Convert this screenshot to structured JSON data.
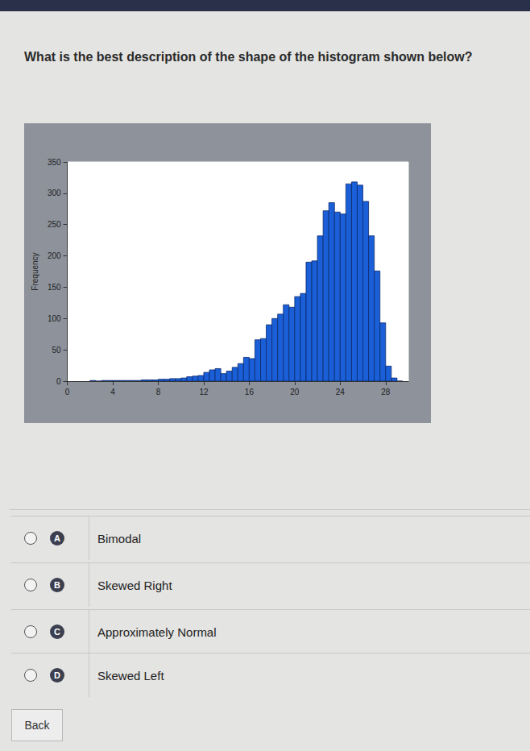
{
  "question": "What is the best description of the shape of the histogram shown below?",
  "chart_data": {
    "type": "histogram",
    "y_label": "Frequency",
    "bins": [
      2.0,
      2.5,
      3.0,
      3.5,
      4.0,
      4.5,
      5.0,
      5.5,
      6.0,
      6.5,
      7.0,
      7.5,
      8.0,
      8.5,
      9.0,
      9.5,
      10.0,
      10.5,
      11.0,
      11.5,
      12.0,
      12.5,
      13.0,
      13.5,
      14.0,
      14.5,
      15.0,
      15.5,
      16.0,
      16.5,
      17.0,
      17.5,
      18.0,
      18.5,
      19.0,
      19.5,
      20.0,
      20.5,
      21.0,
      21.5,
      22.0,
      22.5,
      23.0,
      23.5,
      24.0,
      24.5,
      25.0,
      25.5,
      26.0,
      26.5,
      27.0,
      27.5,
      28.0,
      28.5,
      29.0,
      29.5
    ],
    "values": [
      1,
      0,
      1,
      1,
      1,
      1,
      1,
      1,
      1,
      2,
      2,
      2,
      3,
      3,
      4,
      4,
      5,
      7,
      8,
      9,
      14,
      18,
      20,
      12,
      16,
      22,
      28,
      38,
      36,
      66,
      68,
      90,
      100,
      107,
      122,
      118,
      135,
      140,
      190,
      192,
      232,
      272,
      285,
      270,
      267,
      315,
      318,
      313,
      287,
      232,
      176,
      93,
      24,
      5,
      0
    ],
    "color": "#1a5fd8",
    "xlim": [
      0,
      30
    ],
    "xticks": [
      0,
      4,
      8,
      12,
      16,
      20,
      24,
      28
    ],
    "ylim": [
      0,
      350
    ],
    "yticks": [
      0,
      50,
      100,
      150,
      200,
      250,
      300,
      350
    ],
    "grid": false
  },
  "options": [
    {
      "letter": "A",
      "text": "Bimodal"
    },
    {
      "letter": "B",
      "text": "Skewed Right"
    },
    {
      "letter": "C",
      "text": "Approximately Normal"
    },
    {
      "letter": "D",
      "text": "Skewed Left"
    }
  ],
  "button": "Back"
}
